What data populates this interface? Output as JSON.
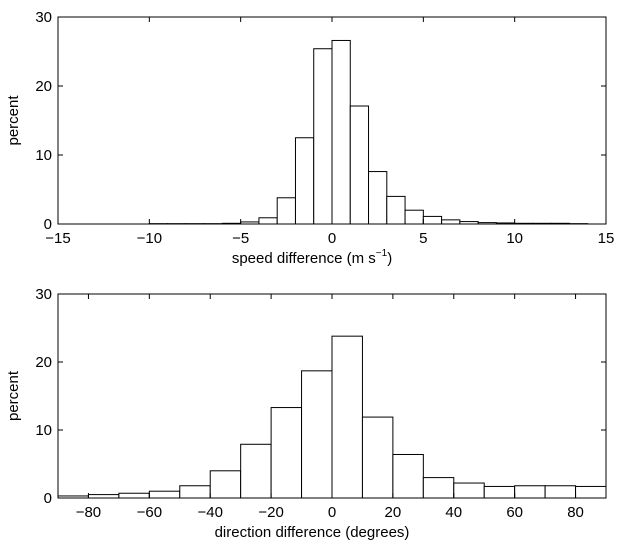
{
  "chart_data": [
    {
      "type": "bar",
      "title": "",
      "xlabel": "speed difference (m s",
      "xlabel_sup": "−1",
      "xlabel_end": ")",
      "ylabel": "percent",
      "xlim": [
        -15,
        15
      ],
      "ylim": [
        0,
        30
      ],
      "xticks": [
        -15,
        -10,
        -5,
        0,
        5,
        10,
        15
      ],
      "xtick_labels": [
        "−15",
        "−10",
        "−5",
        "0",
        "5",
        "10",
        "15"
      ],
      "yticks": [
        0,
        10,
        20,
        30
      ],
      "ytick_labels": [
        "0",
        "10",
        "20",
        "30"
      ],
      "bin_width": 1,
      "bins": [
        -14.5,
        -13.5,
        -12.5,
        -11.5,
        -10.5,
        -9.5,
        -8.5,
        -7.5,
        -6.5,
        -5.5,
        -4.5,
        -3.5,
        -2.5,
        -1.5,
        -0.5,
        0.5,
        1.5,
        2.5,
        3.5,
        4.5,
        5.5,
        6.5,
        7.5,
        8.5,
        9.5,
        10.5,
        11.5,
        12.5,
        13.5,
        14.5
      ],
      "values": [
        0,
        0,
        0,
        0,
        0,
        0.05,
        0.05,
        0.05,
        0.05,
        0.1,
        0.3,
        0.9,
        3.8,
        12.5,
        25.4,
        26.6,
        17.1,
        7.6,
        4.0,
        2.0,
        1.1,
        0.6,
        0.35,
        0.2,
        0.15,
        0.1,
        0.1,
        0.1,
        0.05,
        0
      ],
      "grid": false
    },
    {
      "type": "bar",
      "title": "",
      "xlabel": "direction difference (degrees)",
      "ylabel": "percent",
      "xlim": [
        -90,
        90
      ],
      "ylim": [
        0,
        30
      ],
      "xticks": [
        -80,
        -60,
        -40,
        -20,
        0,
        20,
        40,
        60,
        80
      ],
      "xtick_labels": [
        "−80",
        "−60",
        "−40",
        "−20",
        "0",
        "20",
        "40",
        "60",
        "80"
      ],
      "yticks": [
        0,
        10,
        20,
        30
      ],
      "ytick_labels": [
        "0",
        "10",
        "20",
        "30"
      ],
      "bin_width": 10,
      "bins": [
        -85,
        -75,
        -65,
        -55,
        -45,
        -35,
        -25,
        -15,
        -5,
        5,
        15,
        25,
        35,
        45,
        55,
        65,
        75,
        85
      ],
      "values": [
        0.3,
        0.5,
        0.7,
        1.0,
        1.8,
        4.0,
        7.9,
        13.3,
        18.7,
        23.8,
        11.9,
        6.4,
        3.0,
        2.2,
        1.7,
        1.8,
        1.8,
        1.7
      ],
      "grid": false
    }
  ]
}
